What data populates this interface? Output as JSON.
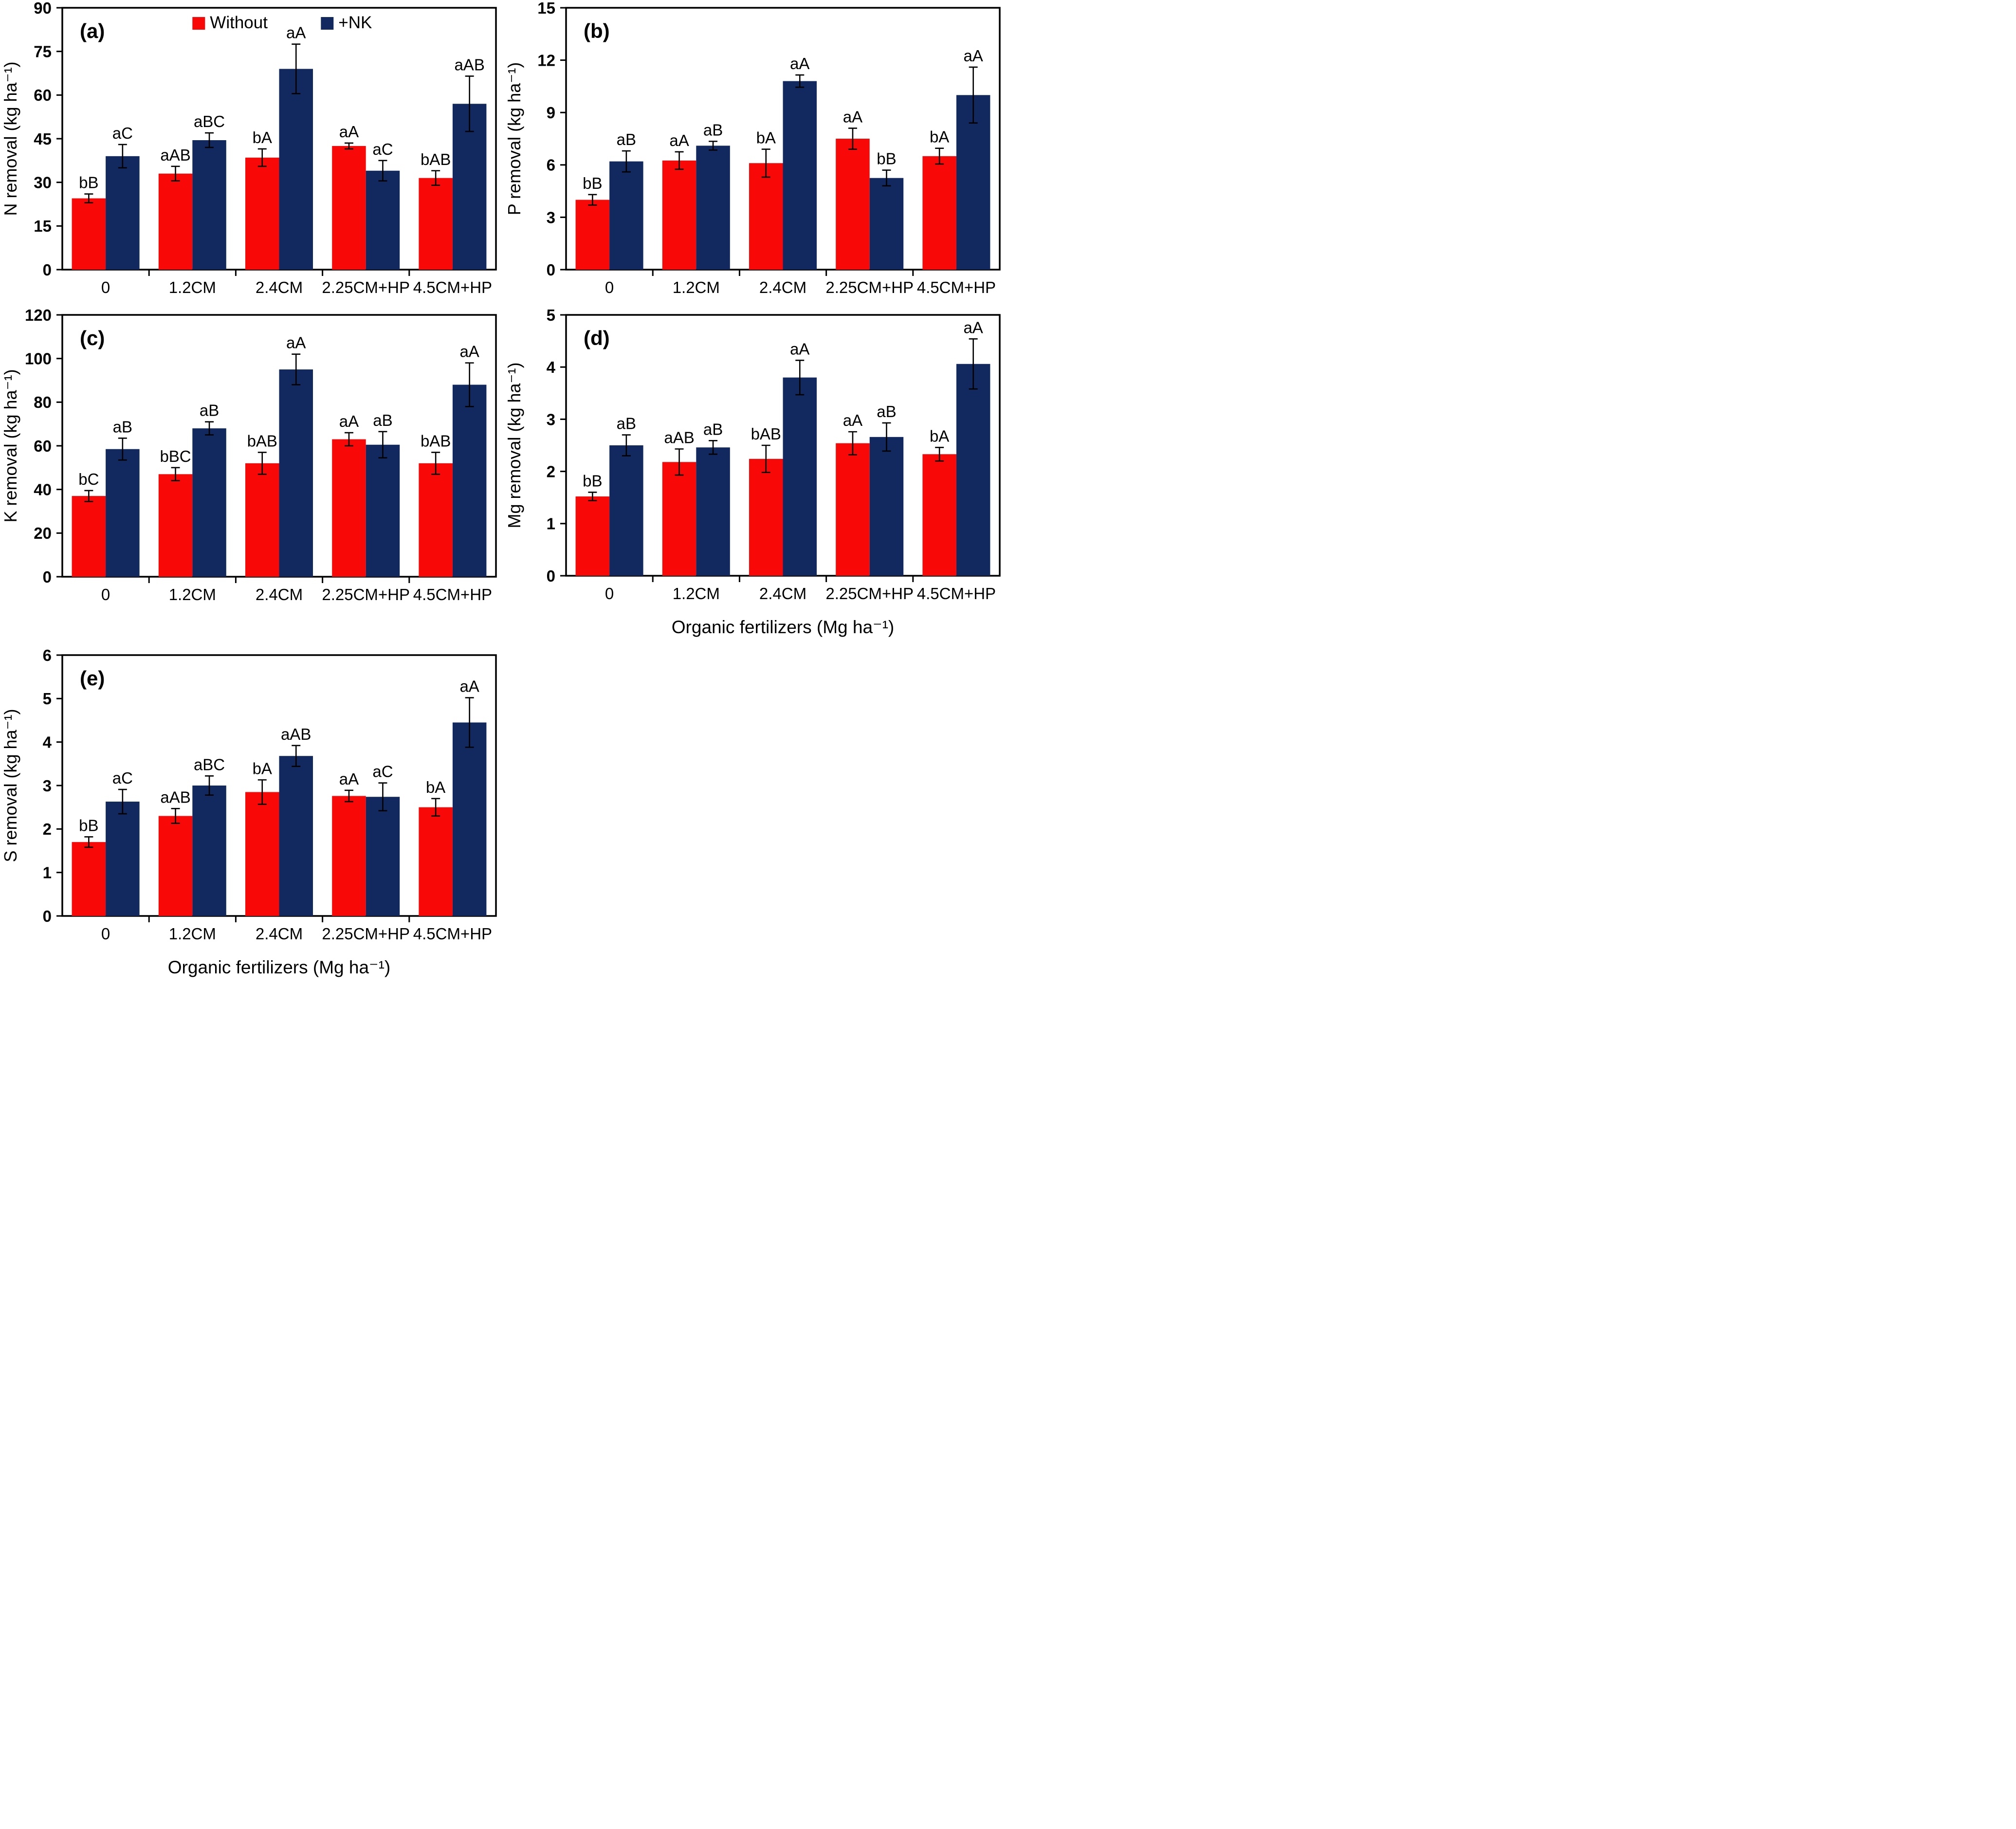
{
  "figure_background": "#ffffff",
  "colors": {
    "without": "#f90808",
    "nk": "#12295f",
    "axis": "#000000",
    "error_bar": "#000000",
    "text": "#000000"
  },
  "legend": {
    "items": [
      {
        "label": "Without",
        "color": "#f90808"
      },
      {
        "label": "+NK",
        "color": "#12295f"
      }
    ],
    "position": "top-center-of-panel-a"
  },
  "shared": {
    "xlabel": "Organic fertilizers (Mg ha⁻¹)",
    "categories": [
      "0",
      "1.2CM",
      "2.4CM",
      "2.25CM+HP",
      "4.5CM+HP"
    ]
  },
  "chart_data": [
    {
      "type": "bar",
      "panel_label": "(a)",
      "ylabel": "N removal (kg ha⁻¹)",
      "xlabel": "",
      "ylim": [
        0,
        90
      ],
      "yticks": [
        0,
        15,
        30,
        45,
        60,
        75,
        90
      ],
      "categories": [
        "0",
        "1.2CM",
        "2.4CM",
        "2.25CM+HP",
        "4.5CM+HP"
      ],
      "grid": false,
      "show_legend": true,
      "series": [
        {
          "name": "Without",
          "color": "#f90808",
          "values": [
            24.5,
            33,
            38.5,
            42.5,
            31.5
          ],
          "errors": [
            1.5,
            2.5,
            3,
            1,
            2.5
          ],
          "sig_labels": [
            "bB",
            "aAB",
            "bA",
            "aA",
            "bAB"
          ]
        },
        {
          "name": "+NK",
          "color": "#12295f",
          "values": [
            39,
            44.5,
            69,
            34,
            57
          ],
          "errors": [
            4,
            2.5,
            8.5,
            3.5,
            9.5
          ],
          "sig_labels": [
            "aC",
            "aBC",
            "aA",
            "aC",
            "aAB"
          ]
        }
      ]
    },
    {
      "type": "bar",
      "panel_label": "(b)",
      "ylabel": "P removal (kg ha⁻¹)",
      "xlabel": "",
      "ylim": [
        0,
        15
      ],
      "yticks": [
        0,
        3,
        6,
        9,
        12,
        15
      ],
      "categories": [
        "0",
        "1.2CM",
        "2.4CM",
        "2.25CM+HP",
        "4.5CM+HP"
      ],
      "grid": false,
      "show_legend": false,
      "series": [
        {
          "name": "Without",
          "color": "#f90808",
          "values": [
            4.0,
            6.25,
            6.1,
            7.5,
            6.5
          ],
          "errors": [
            0.3,
            0.5,
            0.8,
            0.6,
            0.45
          ],
          "sig_labels": [
            "bB",
            "aA",
            "bA",
            "aA",
            "bA"
          ]
        },
        {
          "name": "+NK",
          "color": "#12295f",
          "values": [
            6.2,
            7.1,
            10.8,
            5.25,
            10.0
          ],
          "errors": [
            0.6,
            0.25,
            0.35,
            0.45,
            1.6
          ],
          "sig_labels": [
            "aB",
            "aB",
            "aA",
            "bB",
            "aA"
          ]
        }
      ]
    },
    {
      "type": "bar",
      "panel_label": "(c)",
      "ylabel": "K removal (kg ha⁻¹)",
      "xlabel": "",
      "ylim": [
        0,
        120
      ],
      "yticks": [
        0,
        20,
        40,
        60,
        80,
        100,
        120
      ],
      "categories": [
        "0",
        "1.2CM",
        "2.4CM",
        "2.25CM+HP",
        "4.5CM+HP"
      ],
      "grid": false,
      "show_legend": false,
      "series": [
        {
          "name": "Without",
          "color": "#f90808",
          "values": [
            37,
            47,
            52,
            63,
            52
          ],
          "errors": [
            2.5,
            3,
            5,
            3,
            5
          ],
          "sig_labels": [
            "bC",
            "bBC",
            "bAB",
            "aA",
            "bAB"
          ]
        },
        {
          "name": "+NK",
          "color": "#12295f",
          "values": [
            58.5,
            68,
            95,
            60.5,
            88
          ],
          "errors": [
            5,
            3,
            7,
            6,
            10
          ],
          "sig_labels": [
            "aB",
            "aB",
            "aA",
            "aB",
            "aA"
          ]
        }
      ]
    },
    {
      "type": "bar",
      "panel_label": "(d)",
      "ylabel": "Mg removal (kg ha⁻¹)",
      "xlabel": "Organic fertilizers (Mg ha⁻¹)",
      "ylim": [
        0,
        5
      ],
      "yticks": [
        0,
        1,
        2,
        3,
        4,
        5
      ],
      "categories": [
        "0",
        "1.2CM",
        "2.4CM",
        "2.25CM+HP",
        "4.5CM+HP"
      ],
      "grid": false,
      "show_legend": false,
      "series": [
        {
          "name": "Without",
          "color": "#f90808",
          "values": [
            1.52,
            2.18,
            2.24,
            2.54,
            2.33
          ],
          "errors": [
            0.08,
            0.25,
            0.26,
            0.22,
            0.13
          ],
          "sig_labels": [
            "bB",
            "aAB",
            "bAB",
            "aA",
            "bA"
          ]
        },
        {
          "name": "+NK",
          "color": "#12295f",
          "values": [
            2.5,
            2.46,
            3.8,
            2.66,
            4.06
          ],
          "errors": [
            0.2,
            0.13,
            0.33,
            0.27,
            0.48
          ],
          "sig_labels": [
            "aB",
            "aB",
            "aA",
            "aB",
            "aA"
          ]
        }
      ]
    },
    {
      "type": "bar",
      "panel_label": "(e)",
      "ylabel": "S removal (kg ha⁻¹)",
      "xlabel": "Organic fertilizers (Mg ha⁻¹)",
      "ylim": [
        0,
        6
      ],
      "yticks": [
        0,
        1,
        2,
        3,
        4,
        5,
        6
      ],
      "categories": [
        "0",
        "1.2CM",
        "2.4CM",
        "2.25CM+HP",
        "4.5CM+HP"
      ],
      "grid": false,
      "show_legend": false,
      "series": [
        {
          "name": "Without",
          "color": "#f90808",
          "values": [
            1.7,
            2.3,
            2.85,
            2.76,
            2.5
          ],
          "errors": [
            0.12,
            0.17,
            0.28,
            0.13,
            0.2
          ],
          "sig_labels": [
            "bB",
            "aAB",
            "bA",
            "aA",
            "bA"
          ]
        },
        {
          "name": "+NK",
          "color": "#12295f",
          "values": [
            2.63,
            3.0,
            3.68,
            2.74,
            4.45
          ],
          "errors": [
            0.28,
            0.22,
            0.24,
            0.32,
            0.57
          ],
          "sig_labels": [
            "aC",
            "aBC",
            "aAB",
            "aC",
            "aA"
          ]
        }
      ]
    }
  ]
}
